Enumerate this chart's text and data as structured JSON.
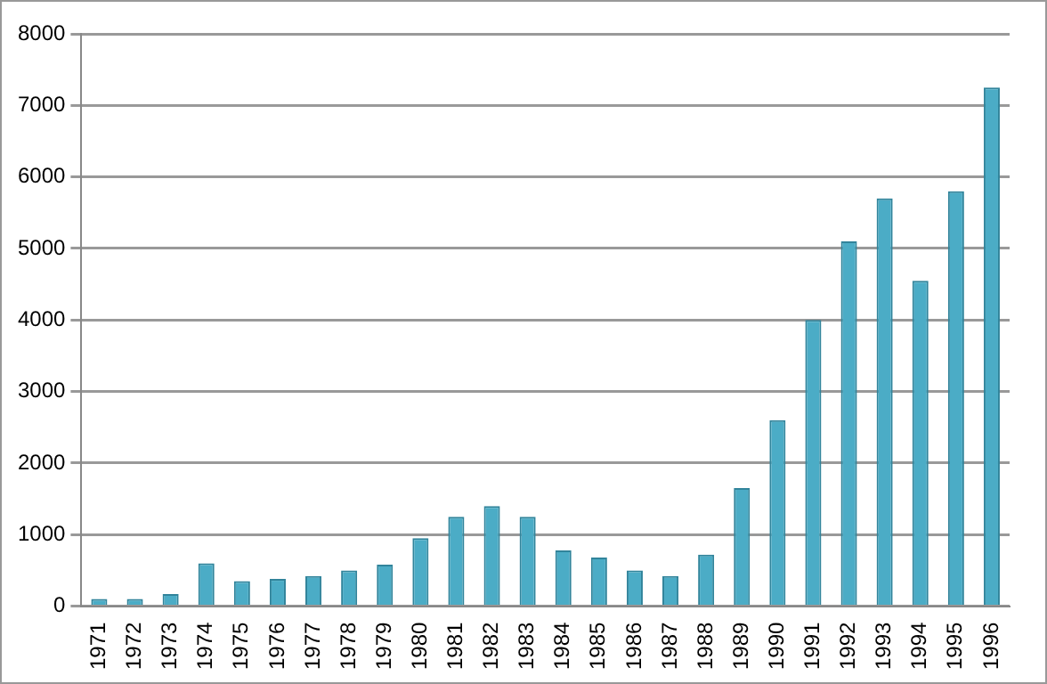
{
  "chart_data": {
    "type": "bar",
    "categories": [
      "1971",
      "1972",
      "1973",
      "1974",
      "1975",
      "1976",
      "1977",
      "1978",
      "1979",
      "1980",
      "1981",
      "1982",
      "1983",
      "1984",
      "1985",
      "1986",
      "1987",
      "1988",
      "1989",
      "1990",
      "1991",
      "1992",
      "1993",
      "1994",
      "1995",
      "1996"
    ],
    "values": [
      100,
      100,
      170,
      600,
      350,
      380,
      420,
      500,
      580,
      950,
      1250,
      1400,
      1250,
      780,
      680,
      500,
      420,
      720,
      1650,
      2600,
      4000,
      5100,
      5700,
      4550,
      5800,
      7250
    ],
    "color": "#4bacc6",
    "ylim": [
      0,
      8000
    ],
    "yticks": [
      0,
      1000,
      2000,
      3000,
      4000,
      5000,
      6000,
      7000,
      8000
    ],
    "grid": "y"
  }
}
